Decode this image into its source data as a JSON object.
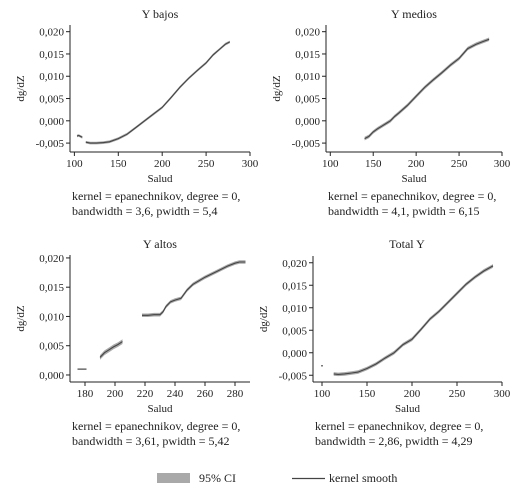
{
  "legend": {
    "ci_label": "95% CI",
    "smooth_label": "kernel smooth",
    "ci_color": "#a9a9a9",
    "line_color": "#444444"
  },
  "chart_data": [
    {
      "type": "line",
      "title": "Y bajos",
      "xlabel": "Salud",
      "ylabel": "dg/dZ",
      "xlim": [
        95,
        300
      ],
      "ylim": [
        -0.007,
        0.0215
      ],
      "xticks": [
        100,
        150,
        200,
        250,
        300
      ],
      "yticks": [
        -0.005,
        0.0,
        0.005,
        0.01,
        0.015,
        0.02
      ],
      "ytick_labels": [
        "-0,005",
        "0,000",
        "0,005",
        "0,010",
        "0,015",
        "0,020"
      ],
      "note_line1": "kernel = epanechnikov, degree = 0,",
      "note_line2": "bandwidth = 3,6, pwidth = 5,4",
      "segments": [
        {
          "x": [
            103,
            105,
            107,
            109
          ],
          "y": [
            -0.0034,
            -0.0033,
            -0.0035,
            -0.0037
          ],
          "ci": 0.0003
        },
        {
          "x": [
            113,
            118,
            125,
            133,
            140,
            150,
            160,
            170,
            180,
            190,
            200,
            210,
            220,
            230,
            240,
            250,
            258,
            265,
            272,
            277
          ],
          "y": [
            -0.0048,
            -0.005,
            -0.005,
            -0.0049,
            -0.0047,
            -0.004,
            -0.003,
            -0.0015,
            0.0,
            0.0015,
            0.003,
            0.0052,
            0.0075,
            0.0095,
            0.0113,
            0.013,
            0.0148,
            0.016,
            0.0172,
            0.0177
          ],
          "ci": 0.0003
        }
      ]
    },
    {
      "type": "line",
      "title": "Y medios",
      "xlabel": "Salud",
      "ylabel": "dg/dZ",
      "xlim": [
        95,
        300
      ],
      "ylim": [
        -0.007,
        0.0215
      ],
      "xticks": [
        100,
        150,
        200,
        250,
        300
      ],
      "yticks": [
        -0.005,
        0.0,
        0.005,
        0.01,
        0.015,
        0.02
      ],
      "ytick_labels": [
        "-0,005",
        "0,000",
        "0,005",
        "0,010",
        "0,015",
        "0,020"
      ],
      "note_line1": "kernel = epanechnikov, degree = 0,",
      "note_line2": "bandwidth = 4,1, pwidth = 6,15",
      "segments": [
        {
          "x": [
            140,
            145,
            150,
            155,
            160,
            165,
            170,
            175,
            180,
            190,
            200,
            210,
            220,
            230,
            240,
            250,
            260,
            270,
            278,
            285
          ],
          "y": [
            -0.004,
            -0.0035,
            -0.0025,
            -0.0018,
            -0.0012,
            -0.0006,
            0.0,
            0.001,
            0.0018,
            0.0035,
            0.0055,
            0.0075,
            0.0092,
            0.0108,
            0.0125,
            0.014,
            0.0162,
            0.0172,
            0.0178,
            0.0183
          ],
          "ci": 0.0004
        }
      ]
    },
    {
      "type": "line",
      "title": "Y altos",
      "xlabel": "Salud",
      "ylabel": "dg/dZ",
      "xlim": [
        170,
        290
      ],
      "ylim": [
        -0.0012,
        0.0205
      ],
      "xticks": [
        180,
        200,
        220,
        240,
        260,
        280
      ],
      "yticks": [
        0.0,
        0.005,
        0.01,
        0.015,
        0.02
      ],
      "ytick_labels": [
        "0,000",
        "0,005",
        "0,010",
        "0,015",
        "0,020"
      ],
      "note_line1": "kernel = epanechnikov, degree = 0,",
      "note_line2": "bandwidth = 3,61, pwidth = 5,42",
      "segments": [
        {
          "x": [
            175,
            181
          ],
          "y": [
            0.001,
            0.001
          ],
          "ci": 0.0001
        },
        {
          "x": [
            190,
            193,
            196,
            199,
            202,
            205
          ],
          "y": [
            0.003,
            0.0038,
            0.0043,
            0.0048,
            0.0052,
            0.0057
          ],
          "ci": 0.0004
        },
        {
          "x": [
            218,
            222,
            226,
            230,
            232,
            234,
            237,
            240,
            244,
            248,
            252,
            260,
            268,
            275,
            280,
            283,
            287
          ],
          "y": [
            0.0102,
            0.0102,
            0.0103,
            0.0103,
            0.0108,
            0.0117,
            0.0125,
            0.0128,
            0.0131,
            0.0145,
            0.0155,
            0.0167,
            0.0177,
            0.0186,
            0.0191,
            0.0193,
            0.0193
          ],
          "ci": 0.0003
        }
      ]
    },
    {
      "type": "line",
      "title": "Total Y",
      "xlabel": "Salud",
      "ylabel": "dg/dZ",
      "xlim": [
        90,
        300
      ],
      "ylim": [
        -0.0065,
        0.0215
      ],
      "xticks": [
        100,
        150,
        200,
        250,
        300
      ],
      "yticks": [
        -0.005,
        0.0,
        0.005,
        0.01,
        0.015,
        0.02
      ],
      "ytick_labels": [
        "-0,005",
        "0,000",
        "0,005",
        "0,010",
        "0,015",
        "0,020"
      ],
      "note_line1": "kernel = epanechnikov, degree = 0,",
      "note_line2": "bandwidth = 2,86, pwidth = 4,29",
      "segments": [
        {
          "x": [
            99,
            101
          ],
          "y": [
            -0.0029,
            -0.0029
          ],
          "ci": 0.0001
        },
        {
          "x": [
            113,
            118,
            125,
            133,
            140,
            150,
            160,
            170,
            180,
            190,
            200,
            210,
            220,
            230,
            240,
            250,
            260,
            270,
            280,
            290
          ],
          "y": [
            -0.0047,
            -0.0048,
            -0.0047,
            -0.0045,
            -0.0043,
            -0.0035,
            -0.0025,
            -0.0012,
            0.0,
            0.0018,
            0.003,
            0.0052,
            0.0075,
            0.0092,
            0.0112,
            0.0132,
            0.0152,
            0.0168,
            0.0182,
            0.0193
          ],
          "ci": 0.0004
        }
      ]
    }
  ]
}
